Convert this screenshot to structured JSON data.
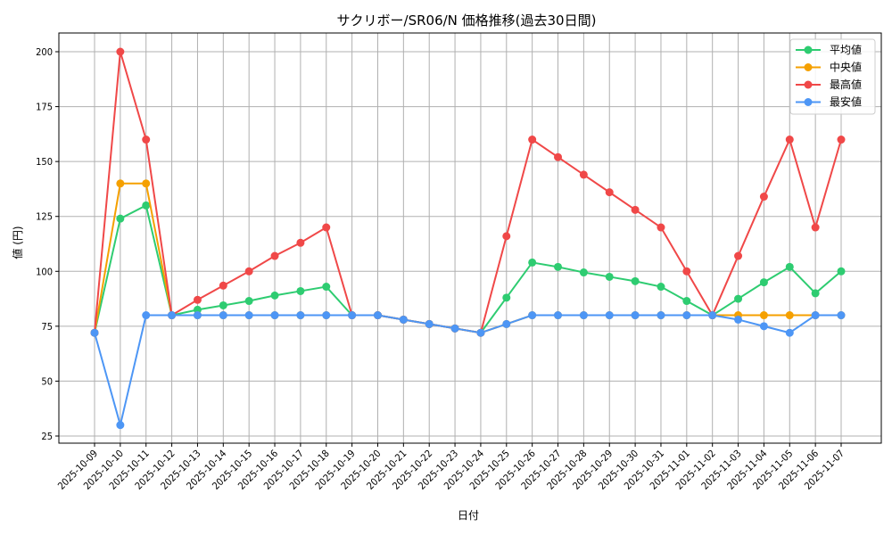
{
  "chart_data": {
    "type": "line",
    "title": "サクリボー/SR06/N 価格推移(過去30日間)",
    "xlabel": "日付",
    "ylabel": "値 (円)",
    "ylim": [
      22,
      208
    ],
    "yticks": [
      25,
      50,
      75,
      100,
      125,
      150,
      175,
      200
    ],
    "grid": true,
    "legend_position": "upper right",
    "x": [
      "2025-10-09",
      "2025-10-10",
      "2025-10-11",
      "2025-10-12",
      "2025-10-13",
      "2025-10-14",
      "2025-10-15",
      "2025-10-16",
      "2025-10-17",
      "2025-10-18",
      "2025-10-19",
      "2025-10-20",
      "2025-10-21",
      "2025-10-22",
      "2025-10-23",
      "2025-10-24",
      "2025-10-25",
      "2025-10-26",
      "2025-10-27",
      "2025-10-28",
      "2025-10-29",
      "2025-10-30",
      "2025-10-31",
      "2025-11-01",
      "2025-11-02",
      "2025-11-03",
      "2025-11-04",
      "2025-11-05",
      "2025-11-06",
      "2025-11-07"
    ],
    "series": [
      {
        "name": "平均値",
        "color": "#2ecc71",
        "values": [
          72,
          124,
          130,
          80,
          82.5,
          84.5,
          86.5,
          89,
          91,
          93,
          80,
          80,
          78,
          76,
          74,
          72,
          88,
          104,
          102,
          99.5,
          97.5,
          95.5,
          93,
          86.5,
          80,
          87.5,
          95,
          102,
          90,
          100
        ]
      },
      {
        "name": "中央値",
        "color": "#f5a000",
        "values": [
          72,
          140,
          140,
          80,
          80,
          80,
          80,
          80,
          80,
          80,
          80,
          80,
          78,
          76,
          74,
          72,
          76,
          80,
          80,
          80,
          80,
          80,
          80,
          80,
          80,
          80,
          80,
          80,
          80,
          80
        ]
      },
      {
        "name": "最高値",
        "color": "#f04848",
        "values": [
          72,
          200,
          160,
          80,
          87,
          93.5,
          100,
          107,
          113,
          120,
          80,
          80,
          78,
          76,
          74,
          72,
          116,
          160,
          152,
          144,
          136,
          128,
          120,
          100,
          80,
          107,
          134,
          160,
          120,
          160
        ]
      },
      {
        "name": "最安値",
        "color": "#4d96f5",
        "values": [
          72,
          30,
          80,
          80,
          80,
          80,
          80,
          80,
          80,
          80,
          80,
          80,
          78,
          76,
          74,
          72,
          76,
          80,
          80,
          80,
          80,
          80,
          80,
          80,
          80,
          78,
          75,
          72,
          80,
          80
        ]
      }
    ]
  }
}
